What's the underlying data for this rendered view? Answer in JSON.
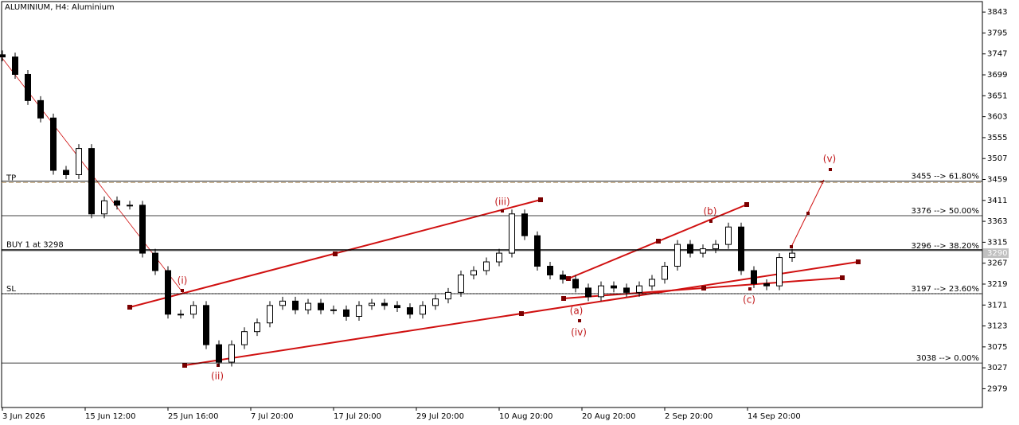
{
  "chart_data": {
    "type": "candlestick",
    "title": "ALUMINIUM, H4:  Aluminium",
    "x": [
      0,
      4,
      8,
      12,
      16,
      20,
      24,
      28,
      32,
      36,
      40,
      44,
      48,
      52,
      56,
      60,
      64,
      68,
      72,
      76,
      80,
      84,
      88,
      92,
      96,
      100,
      104,
      108,
      112,
      116,
      120,
      124,
      128,
      132,
      136,
      140,
      144,
      148,
      152,
      156,
      160,
      164,
      168,
      172,
      176,
      180,
      184,
      188,
      192,
      196,
      200,
      204,
      208,
      212,
      216,
      220,
      224,
      228,
      232,
      236,
      240,
      244,
      248
    ],
    "open": [
      3745,
      3740,
      3700,
      3640,
      3600,
      3480,
      3470,
      3530,
      3380,
      3410,
      3400,
      3400,
      3290,
      3250,
      3150,
      3150,
      3170,
      3080,
      3040,
      3080,
      3110,
      3130,
      3170,
      3180,
      3160,
      3175,
      3160,
      3160,
      3145,
      3170,
      3175,
      3170,
      3165,
      3150,
      3170,
      3185,
      3200,
      3240,
      3250,
      3270,
      3290,
      3380,
      3330,
      3260,
      3240,
      3230,
      3210,
      3190,
      3215,
      3210,
      3200,
      3215,
      3230,
      3260,
      3310,
      3290,
      3300,
      3310,
      3350,
      3250,
      3220,
      3215,
      3280
    ],
    "high": [
      3755,
      3750,
      3710,
      3650,
      3610,
      3490,
      3540,
      3540,
      3420,
      3420,
      3410,
      3410,
      3300,
      3260,
      3160,
      3180,
      3180,
      3090,
      3090,
      3120,
      3140,
      3180,
      3190,
      3190,
      3185,
      3185,
      3170,
      3170,
      3180,
      3185,
      3185,
      3180,
      3175,
      3180,
      3195,
      3210,
      3250,
      3260,
      3280,
      3300,
      3390,
      3390,
      3340,
      3270,
      3250,
      3240,
      3220,
      3225,
      3225,
      3220,
      3225,
      3240,
      3270,
      3320,
      3320,
      3310,
      3320,
      3360,
      3360,
      3260,
      3230,
      3290,
      3300
    ],
    "low": [
      3730,
      3690,
      3630,
      3590,
      3470,
      3460,
      3460,
      3370,
      3370,
      3390,
      3390,
      3280,
      3240,
      3140,
      3140,
      3140,
      3070,
      3030,
      3030,
      3070,
      3100,
      3120,
      3160,
      3150,
      3150,
      3150,
      3150,
      3135,
      3135,
      3160,
      3160,
      3155,
      3140,
      3140,
      3160,
      3175,
      3190,
      3230,
      3240,
      3260,
      3280,
      3320,
      3250,
      3230,
      3220,
      3200,
      3180,
      3180,
      3200,
      3190,
      3190,
      3205,
      3220,
      3250,
      3280,
      3280,
      3290,
      3300,
      3240,
      3210,
      3205,
      3205,
      3270
    ],
    "close": [
      3740,
      3700,
      3640,
      3600,
      3480,
      3470,
      3530,
      3380,
      3410,
      3400,
      3400,
      3290,
      3250,
      3150,
      3150,
      3170,
      3080,
      3040,
      3080,
      3110,
      3130,
      3170,
      3180,
      3160,
      3175,
      3160,
      3160,
      3145,
      3170,
      3175,
      3170,
      3165,
      3150,
      3170,
      3185,
      3200,
      3240,
      3250,
      3270,
      3290,
      3380,
      3330,
      3260,
      3240,
      3230,
      3210,
      3190,
      3215,
      3210,
      3200,
      3215,
      3230,
      3260,
      3310,
      3290,
      3300,
      3310,
      3350,
      3250,
      3220,
      3215,
      3280,
      3290
    ],
    "xlim": [
      -0.75,
      307.75
    ],
    "xticks": [
      {
        "value": 0,
        "label": "3 Jun 2026"
      },
      {
        "value": 26,
        "label": "15 Jun 12:00"
      },
      {
        "value": 52,
        "label": "25 Jun 16:00"
      },
      {
        "value": 78,
        "label": "7 Jul 20:00"
      },
      {
        "value": 104,
        "label": "17 Jul 20:00"
      },
      {
        "value": 130,
        "label": "29 Jul 20:00"
      },
      {
        "value": 156,
        "label": "10 Aug 20:00"
      },
      {
        "value": 182,
        "label": "20 Aug 20:00"
      },
      {
        "value": 208,
        "label": "2 Sep 20:00"
      },
      {
        "value": 234,
        "label": "14 Sep 20:00"
      }
    ],
    "ylim": [
      2936,
      3867
    ],
    "yticks": [
      3843,
      3795,
      3747,
      3699,
      3651,
      3603,
      3555,
      3507,
      3459,
      3411,
      3363,
      3315,
      3267,
      3219,
      3171,
      3123,
      3075,
      3027,
      2979
    ],
    "last_price": 3290,
    "levels": [
      {
        "value": 3455,
        "label": "3455 --> 61.80%"
      },
      {
        "value": 3376,
        "label": "3376 --> 50.00%"
      },
      {
        "value": 3296,
        "label": "3296 --> 38.20%"
      },
      {
        "value": 3197,
        "label": "3197 --> 23.60%"
      },
      {
        "value": 3038,
        "label": "3038 --> 0.00%"
      }
    ],
    "orders": [
      {
        "value": 3452,
        "label": "TP"
      },
      {
        "value": 3298,
        "label": "BUY 1 at 3298"
      },
      {
        "value": 3197,
        "label": "SL"
      }
    ],
    "waves": [
      "(i)",
      "(ii)",
      "(iii)",
      "(iv)",
      "(a)",
      "(b)",
      "(c)",
      "(v)"
    ]
  }
}
